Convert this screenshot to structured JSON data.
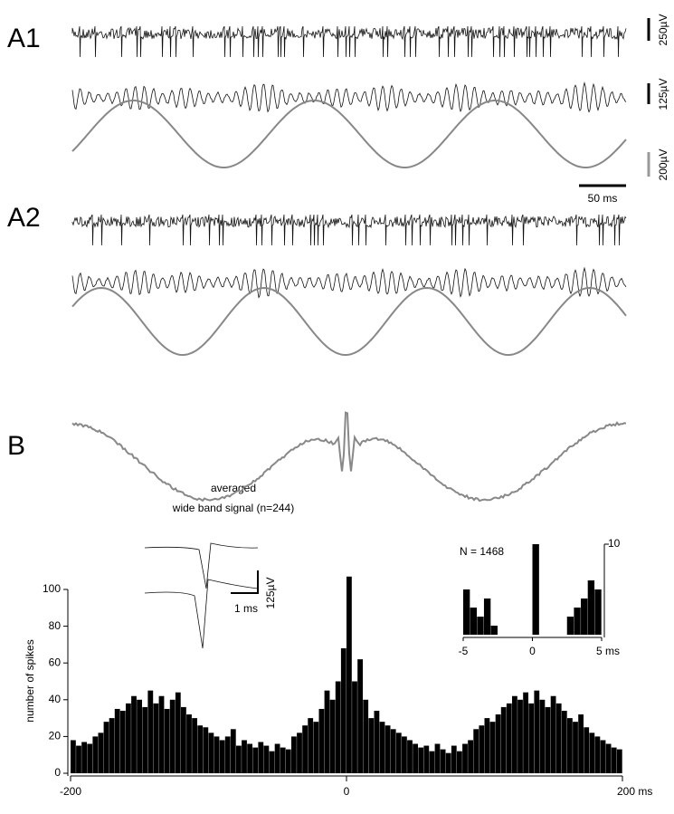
{
  "figure": {
    "panel_labels": [
      "A1",
      "A2",
      "B"
    ],
    "scale_bars": [
      "250µV",
      "125µV",
      "200µV",
      "50 ms"
    ],
    "average_label": [
      "averaged",
      "wide band signal (n=244)"
    ],
    "unit_scale": [
      "125µV",
      "1 ms"
    ]
  },
  "chart_data": [
    {
      "type": "histogram",
      "ylabel": "number of spikes",
      "color": "#000000",
      "bins": [
        -200,
        -196,
        -192,
        -188,
        -184,
        -180,
        -176,
        -172,
        -168,
        -164,
        -160,
        -156,
        -152,
        -148,
        -144,
        -140,
        -136,
        -132,
        -128,
        -124,
        -120,
        -116,
        -112,
        -108,
        -104,
        -100,
        -96,
        -92,
        -88,
        -84,
        -80,
        -76,
        -72,
        -68,
        -64,
        -60,
        -56,
        -52,
        -48,
        -44,
        -40,
        -36,
        -32,
        -28,
        -24,
        -20,
        -16,
        -12,
        -8,
        -4,
        0,
        4,
        8,
        12,
        16,
        20,
        24,
        28,
        32,
        36,
        40,
        44,
        48,
        52,
        56,
        60,
        64,
        68,
        72,
        76,
        80,
        84,
        88,
        92,
        96,
        100,
        104,
        108,
        112,
        116,
        120,
        124,
        128,
        132,
        136,
        140,
        144,
        148,
        152,
        156,
        160,
        164,
        168,
        172,
        176,
        180,
        184,
        188,
        192,
        196,
        200
      ],
      "values": [
        18,
        15,
        17,
        16,
        20,
        22,
        28,
        30,
        35,
        34,
        38,
        42,
        40,
        36,
        45,
        38,
        42,
        35,
        40,
        44,
        36,
        32,
        30,
        26,
        25,
        22,
        20,
        18,
        20,
        24,
        15,
        18,
        16,
        14,
        17,
        15,
        12,
        16,
        14,
        13,
        20,
        22,
        26,
        30,
        28,
        35,
        45,
        40,
        50,
        68,
        107,
        50,
        62,
        40,
        30,
        34,
        28,
        26,
        24,
        22,
        20,
        18,
        16,
        14,
        15,
        12,
        16,
        13,
        11,
        15,
        12,
        16,
        18,
        24,
        26,
        30,
        28,
        32,
        36,
        38,
        42,
        40,
        44,
        38,
        45,
        40,
        36,
        42,
        38,
        34,
        30,
        28,
        32,
        25,
        22,
        20,
        18,
        16,
        14,
        13
      ],
      "xlim": [
        -200,
        200
      ],
      "ylim": [
        0,
        100
      ],
      "xticks": [
        -200,
        0,
        {
          "value": 200,
          "label": "200 ms"
        }
      ],
      "yticks": [
        0,
        20,
        40,
        60,
        80,
        100
      ]
    },
    {
      "type": "histogram",
      "annotation": "N = 1468",
      "color": "#000000",
      "bins": [
        -5,
        -4.5,
        -4,
        -3.5,
        -3,
        -2.5,
        -2,
        -1.5,
        -1,
        -0.5,
        0,
        0.5,
        1,
        1.5,
        2,
        2.5,
        3,
        3.5,
        4,
        4.5,
        5
      ],
      "values": [
        5,
        3,
        2,
        4,
        1,
        0,
        0,
        0,
        0,
        0,
        10,
        0,
        0,
        0,
        0,
        2,
        3,
        4,
        6,
        5
      ],
      "xlim": [
        -5,
        5
      ],
      "ylim": [
        0,
        10
      ],
      "xticks": [
        -5,
        0,
        {
          "value": 5,
          "label": "5 ms"
        }
      ],
      "yticks": [
        10
      ]
    }
  ]
}
